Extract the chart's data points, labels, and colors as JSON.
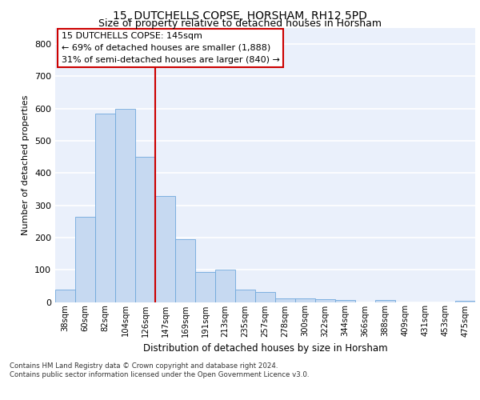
{
  "title": "15, DUTCHELLS COPSE, HORSHAM, RH12 5PD",
  "subtitle": "Size of property relative to detached houses in Horsham",
  "xlabel": "Distribution of detached houses by size in Horsham",
  "ylabel": "Number of detached properties",
  "categories": [
    "38sqm",
    "60sqm",
    "82sqm",
    "104sqm",
    "126sqm",
    "147sqm",
    "169sqm",
    "191sqm",
    "213sqm",
    "235sqm",
    "257sqm",
    "278sqm",
    "300sqm",
    "322sqm",
    "344sqm",
    "366sqm",
    "388sqm",
    "409sqm",
    "431sqm",
    "453sqm",
    "475sqm"
  ],
  "values": [
    38,
    265,
    585,
    600,
    450,
    330,
    195,
    93,
    100,
    38,
    32,
    12,
    10,
    8,
    5,
    0,
    5,
    0,
    0,
    0,
    3
  ],
  "bar_color": "#c6d9f1",
  "bar_edge_color": "#6fa8dc",
  "vline_color": "#cc0000",
  "annotation_line1": "15 DUTCHELLS COPSE: 145sqm",
  "annotation_line2": "← 69% of detached houses are smaller (1,888)",
  "annotation_line3": "31% of semi-detached houses are larger (840) →",
  "annotation_box_facecolor": "#ffffff",
  "annotation_box_edgecolor": "#cc0000",
  "ylim": [
    0,
    850
  ],
  "yticks": [
    0,
    100,
    200,
    300,
    400,
    500,
    600,
    700,
    800
  ],
  "background_color": "#eaf0fb",
  "grid_color": "#ffffff",
  "footnote1": "Contains HM Land Registry data © Crown copyright and database right 2024.",
  "footnote2": "Contains public sector information licensed under the Open Government Licence v3.0."
}
